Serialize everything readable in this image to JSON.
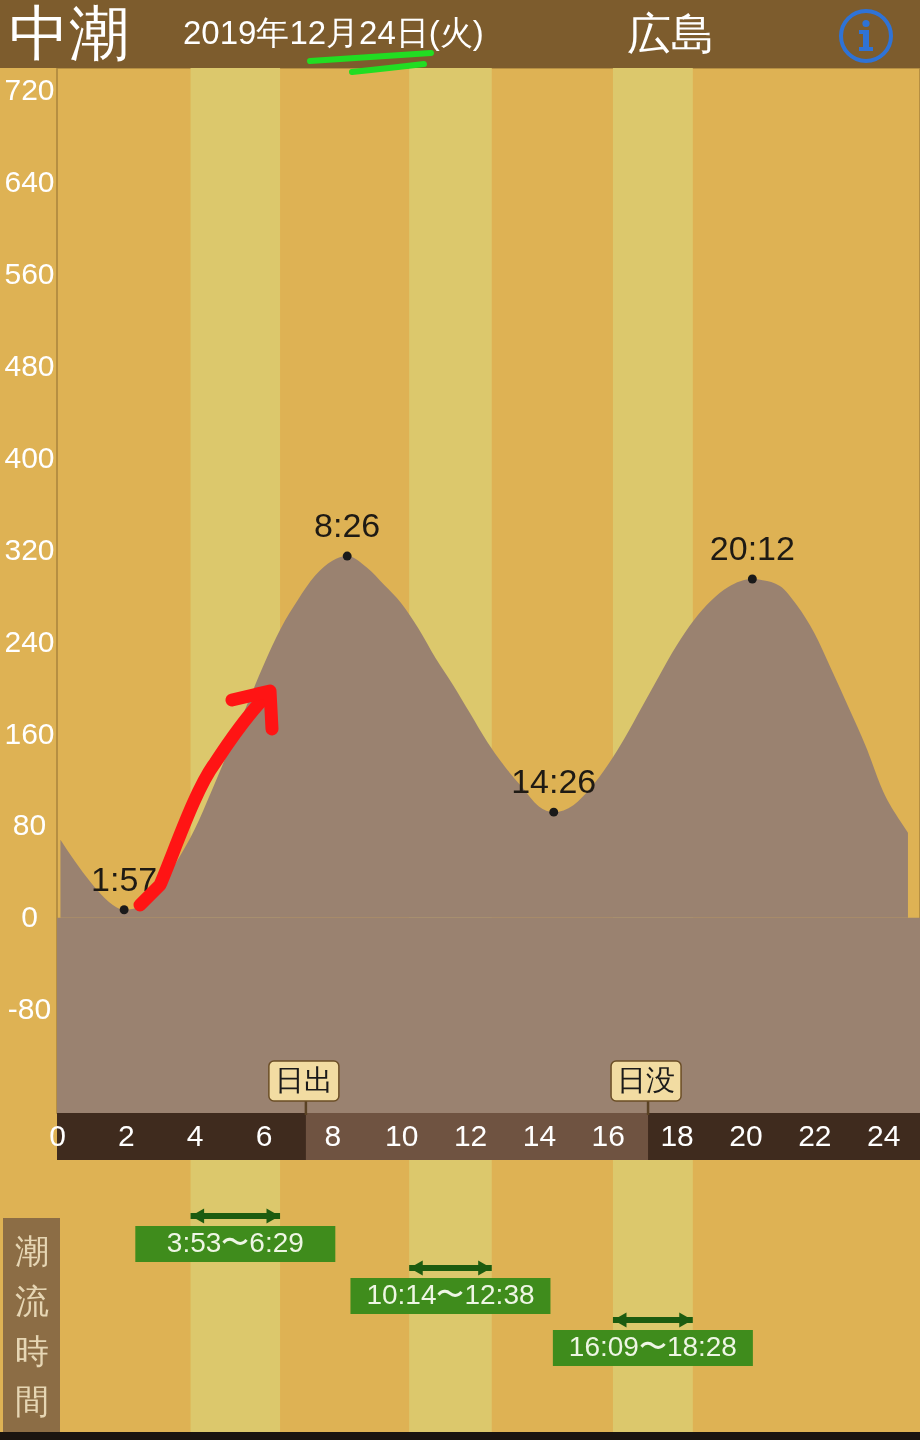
{
  "chart_data": {
    "type": "area",
    "title": "中潮",
    "subtitle": "2019年12月24日(火)",
    "annotations": [
      "広島",
      "潮流時間",
      {
        "text": "1:57",
        "x": 1.95,
        "y": 7
      },
      {
        "text": "8:26",
        "x": 8.43,
        "y": 315
      },
      {
        "text": "14:26",
        "x": 14.43,
        "y": 92
      },
      {
        "text": "20:12",
        "x": 20.2,
        "y": 295
      }
    ],
    "xlim": [
      0,
      25.07
    ],
    "xticks": [
      0,
      2,
      4,
      6,
      8,
      10,
      12,
      14,
      16,
      18,
      20,
      22,
      24
    ],
    "ylim": [
      -170,
      740
    ],
    "yticks": [
      -80,
      0,
      80,
      160,
      240,
      320,
      400,
      480,
      560,
      640,
      720
    ],
    "series": [
      {
        "color": "#9a8270",
        "x": [
          0.1,
          0.5,
          1,
          1.5,
          1.95,
          2.5,
          3,
          3.5,
          4,
          4.5,
          5,
          5.5,
          6,
          6.5,
          7,
          7.5,
          8,
          8.43,
          9,
          9.5,
          10,
          10.5,
          11,
          11.5,
          12,
          12.5,
          13,
          13.5,
          14,
          14.43,
          15,
          15.5,
          16,
          16.5,
          17,
          17.5,
          18,
          18.5,
          19,
          19.5,
          20.2,
          20.5,
          21,
          21.5,
          22,
          22.5,
          23,
          23.5,
          24,
          24.5,
          24.72
        ],
        "values": [
          68,
          50,
          30,
          14,
          7,
          11,
          27,
          50,
          77,
          111,
          147,
          184,
          220,
          252,
          277,
          298,
          311,
          315,
          305,
          290,
          274,
          252,
          226,
          203,
          178,
          153,
          132,
          114,
          97,
          92,
          98,
          113,
          133,
          157,
          184,
          211,
          237,
          259,
          276,
          288,
          295,
          294,
          289,
          272,
          248,
          216,
          183,
          149,
          110,
          84,
          74
        ]
      },
      {
        "type": "scatter",
        "color": "#1a1a1a",
        "marker": "circle",
        "x": [
          1.95,
          8.43,
          14.43,
          20.2
        ],
        "values": [
          7,
          315,
          92,
          295
        ]
      }
    ],
    "bands": [
      {
        "axis": "x",
        "from": 3.88,
        "to": 6.48,
        "label": "3:53〜6:29",
        "color": "#dcc86c"
      },
      {
        "axis": "x",
        "from": 10.23,
        "to": 12.63,
        "label": "10:14〜12:38",
        "color": "#dcc86c"
      },
      {
        "axis": "x",
        "from": 16.15,
        "to": 18.47,
        "label": "16:09〜18:28",
        "color": "#dcc86c"
      },
      {
        "axis": "y",
        "from": -170,
        "to": 0,
        "color": "#9a8270"
      }
    ],
    "ref_lines": [
      {
        "axis": "x",
        "value": 7.23,
        "label": "日出"
      },
      {
        "axis": "x",
        "value": 17.17,
        "label": "日没"
      }
    ]
  }
}
